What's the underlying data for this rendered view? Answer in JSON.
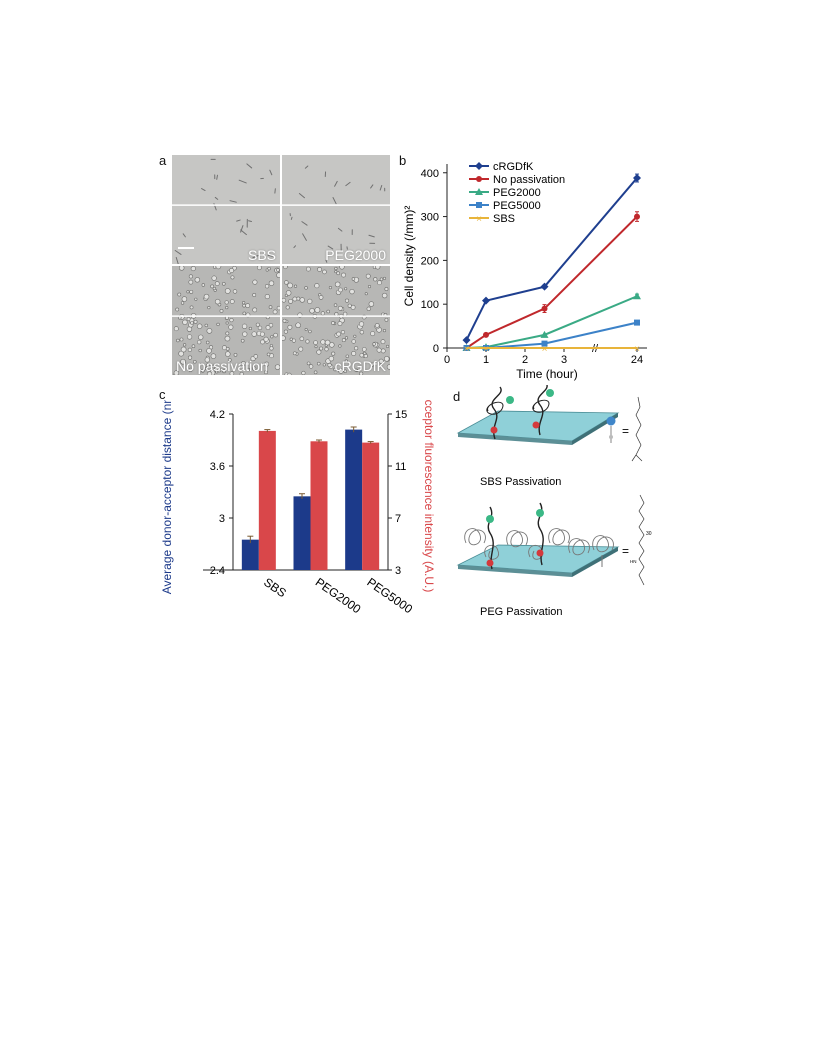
{
  "panels": {
    "a": {
      "letter": "a",
      "images": [
        {
          "label": "SBS",
          "tone": "light"
        },
        {
          "label": "PEG2000",
          "tone": "light"
        },
        {
          "label": "No passivation",
          "tone": "dense"
        },
        {
          "label": "cRGDfK",
          "tone": "dense"
        }
      ]
    },
    "b": {
      "letter": "b"
    },
    "c": {
      "letter": "c"
    },
    "d": {
      "letter": "d",
      "top_label": "SBS Passivation",
      "bottom_label": "PEG Passivation",
      "equals": "=",
      "peg_subscript": "30",
      "peg_nh": "HN"
    }
  },
  "chart_data": [
    {
      "id": "b",
      "type": "line",
      "xlabel": "Time (hour)",
      "ylabel": "Cell density (/mm)²",
      "x_ticks": [
        "0",
        "1",
        "2",
        "3",
        "24"
      ],
      "x_break": "//",
      "y_ticks": [
        0,
        100,
        200,
        300,
        400
      ],
      "ylim": [
        0,
        420
      ],
      "x": [
        0.5,
        1,
        2.5,
        24
      ],
      "legend_position": "top-left",
      "series": [
        {
          "name": "cRGDfK",
          "color": "#1f3f8f",
          "marker": "diamond",
          "values": [
            18,
            108,
            140,
            388
          ],
          "errors": [
            0,
            0,
            4,
            9
          ]
        },
        {
          "name": "No passivation",
          "color": "#c0282c",
          "marker": "circle",
          "values": [
            0,
            30,
            90,
            300
          ],
          "errors": [
            0,
            0,
            9,
            11
          ]
        },
        {
          "name": "PEG2000",
          "color": "#3aaa85",
          "marker": "triangle",
          "values": [
            0,
            2,
            30,
            118
          ],
          "errors": [
            0,
            0,
            0,
            5
          ]
        },
        {
          "name": "PEG5000",
          "color": "#3c82c8",
          "marker": "square",
          "values": [
            0,
            0,
            10,
            58
          ],
          "errors": [
            0,
            0,
            0,
            0
          ]
        },
        {
          "name": "SBS",
          "color": "#e8b43a",
          "marker": "x",
          "values": [
            0,
            0,
            0,
            0
          ],
          "errors": [
            0,
            0,
            0,
            0
          ]
        }
      ]
    },
    {
      "id": "c",
      "type": "bar",
      "categories": [
        "SBS",
        "PEG2000",
        "PEG5000"
      ],
      "ylabel_left": "Average donor-acceptor distance (nm)",
      "ylabel_right": "Acceptor fluorescence intensity (A.U.)",
      "left_ticks": [
        "2.4",
        "3",
        "3.6",
        "4.2"
      ],
      "left_lim": [
        2.4,
        4.2
      ],
      "right_ticks": [
        "3",
        "7",
        "11",
        "15"
      ],
      "right_lim": [
        3,
        15
      ],
      "series": [
        {
          "name": "Average donor-acceptor distance",
          "axis": "left",
          "color": "#1c3a8a",
          "values": [
            2.75,
            3.25,
            4.02
          ],
          "errors": [
            0.04,
            0.03,
            0.03
          ]
        },
        {
          "name": "Acceptor fluorescence intensity",
          "axis": "right",
          "color": "#d9474a",
          "values": [
            13.7,
            12.9,
            12.8
          ],
          "errors": [
            0.1,
            0.1,
            0.08
          ]
        }
      ]
    }
  ]
}
